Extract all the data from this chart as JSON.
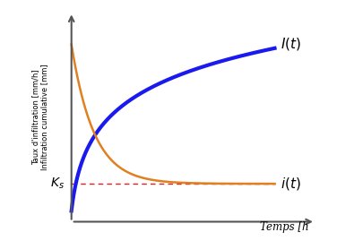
{
  "ylabel_line1": "Taux d'infiltration [mm/h]",
  "ylabel_line2": "Infiltration cumulative [mm]",
  "xlabel": "Temps [h",
  "Ks_label": "$K_s$",
  "It_label": "$I(t)$",
  "it_label": "$i(t)$",
  "bg_color": "#ffffff",
  "blue_color": "#1a1aee",
  "orange_color": "#e08020",
  "red_dashed_color": "#dd2222",
  "axis_color": "#555555",
  "Ks_level": 0.15,
  "t_max": 10,
  "ylabel_fontsize": 6.0,
  "xlabel_fontsize": 8.5,
  "curve_label_fontsize": 11,
  "Ks_fontsize": 10
}
